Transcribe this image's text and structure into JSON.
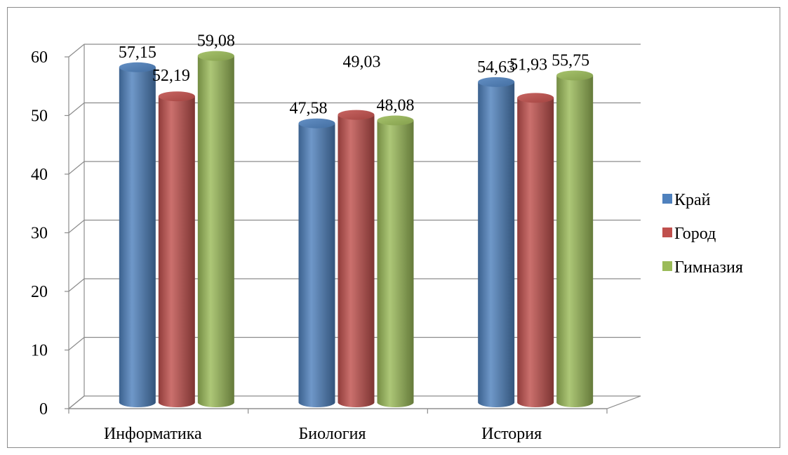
{
  "chart_data": {
    "type": "bar",
    "style": "3d-cylinder",
    "categories": [
      "Информатика",
      "Биология",
      "История"
    ],
    "series": [
      {
        "name": "Край",
        "values": [
          57.15,
          47.58,
          54.63
        ],
        "label_texts": [
          "57,15",
          "47,58",
          "54,63"
        ],
        "color": "#4f81bd"
      },
      {
        "name": "Город",
        "values": [
          52.19,
          49.03,
          51.93
        ],
        "label_texts": [
          "52,19",
          "49,03",
          "51,93"
        ],
        "color": "#c0504d"
      },
      {
        "name": "Гимназия",
        "values": [
          59.08,
          48.08,
          55.75
        ],
        "label_texts": [
          "59,08",
          "48,08",
          "55,75"
        ],
        "color": "#9bbb59"
      }
    ],
    "y_ticks": [
      "0",
      "10",
      "20",
      "30",
      "40",
      "50",
      "60"
    ],
    "ylim": [
      0,
      60
    ],
    "grid": true,
    "legend_position": "right"
  }
}
